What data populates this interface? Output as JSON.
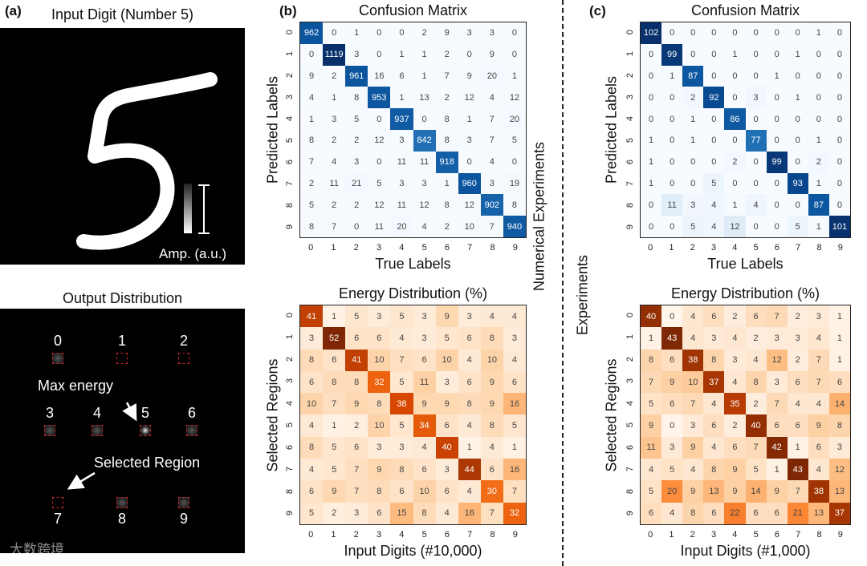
{
  "panel_a": {
    "label": "(a)",
    "input_title": "Input Digit (Number 5)",
    "amp_label": "Amp. (a.u.)",
    "output_title": "Output Distribution",
    "region_labels": [
      "0",
      "1",
      "2",
      "3",
      "4",
      "5",
      "6",
      "7",
      "8",
      "9"
    ],
    "max_energy_label": "Max energy",
    "selected_region_label": "Selected Region",
    "watermark": "大数跨境"
  },
  "panel_b": {
    "label": "(b)",
    "side_label": "Numerical Experiments"
  },
  "panel_c": {
    "label": "(c)",
    "side_label": "Experiments"
  },
  "chart_data": [
    {
      "type": "heatmap",
      "id": "b-confusion",
      "colormap": "blues",
      "title": "Confusion Matrix",
      "xlabel": "True Labels",
      "ylabel": "Predicted Labels",
      "xticks": [
        "0",
        "1",
        "2",
        "3",
        "4",
        "5",
        "6",
        "7",
        "8",
        "9"
      ],
      "yticks": [
        "0",
        "1",
        "2",
        "3",
        "4",
        "5",
        "6",
        "7",
        "8",
        "9"
      ],
      "values": [
        [
          962,
          0,
          1,
          0,
          0,
          2,
          9,
          3,
          3,
          0
        ],
        [
          0,
          1119,
          3,
          0,
          1,
          1,
          2,
          0,
          9,
          0
        ],
        [
          9,
          2,
          961,
          16,
          6,
          1,
          7,
          9,
          20,
          1
        ],
        [
          4,
          1,
          8,
          953,
          1,
          13,
          2,
          12,
          4,
          12
        ],
        [
          1,
          3,
          5,
          0,
          937,
          0,
          8,
          1,
          7,
          20
        ],
        [
          8,
          2,
          2,
          12,
          3,
          842,
          8,
          3,
          7,
          5
        ],
        [
          7,
          4,
          3,
          0,
          11,
          11,
          918,
          0,
          4,
          0
        ],
        [
          2,
          11,
          21,
          5,
          3,
          3,
          1,
          960,
          3,
          19
        ],
        [
          5,
          2,
          2,
          12,
          11,
          12,
          8,
          12,
          902,
          8
        ],
        [
          8,
          7,
          0,
          11,
          20,
          4,
          2,
          10,
          7,
          940
        ]
      ]
    },
    {
      "type": "heatmap",
      "id": "b-energy",
      "colormap": "oranges",
      "title": "Energy Distribution (%)",
      "xlabel": "Input Digits (#10,000)",
      "ylabel": "Selected Regions",
      "xticks": [
        "0",
        "1",
        "2",
        "3",
        "4",
        "5",
        "6",
        "7",
        "8",
        "9"
      ],
      "yticks": [
        "0",
        "1",
        "2",
        "3",
        "4",
        "5",
        "6",
        "7",
        "8",
        "9"
      ],
      "values": [
        [
          41,
          1,
          5,
          3,
          5,
          3,
          9,
          3,
          4,
          4
        ],
        [
          3,
          52,
          6,
          6,
          4,
          3,
          5,
          6,
          8,
          3
        ],
        [
          8,
          6,
          41,
          10,
          7,
          6,
          10,
          4,
          10,
          4
        ],
        [
          6,
          8,
          8,
          32,
          5,
          11,
          3,
          6,
          9,
          6
        ],
        [
          10,
          7,
          9,
          8,
          38,
          9,
          9,
          8,
          9,
          16
        ],
        [
          4,
          1,
          2,
          10,
          5,
          34,
          6,
          4,
          8,
          5
        ],
        [
          8,
          5,
          6,
          3,
          3,
          4,
          40,
          1,
          4,
          1
        ],
        [
          4,
          5,
          7,
          9,
          8,
          6,
          3,
          44,
          6,
          16
        ],
        [
          6,
          9,
          7,
          8,
          6,
          10,
          6,
          4,
          30,
          7
        ],
        [
          5,
          2,
          3,
          6,
          15,
          8,
          4,
          16,
          7,
          32
        ]
      ]
    },
    {
      "type": "heatmap",
      "id": "c-confusion",
      "colormap": "blues",
      "title": "Confusion Matrix",
      "xlabel": "True Labels",
      "ylabel": "Predicted Labels",
      "xticks": [
        "0",
        "1",
        "2",
        "3",
        "4",
        "5",
        "6",
        "7",
        "8",
        "9"
      ],
      "yticks": [
        "0",
        "1",
        "2",
        "3",
        "4",
        "5",
        "6",
        "7",
        "8",
        "9"
      ],
      "values": [
        [
          102,
          0,
          0,
          0,
          0,
          0,
          0,
          0,
          1,
          0
        ],
        [
          0,
          99,
          0,
          0,
          1,
          0,
          0,
          1,
          0,
          0
        ],
        [
          0,
          1,
          87,
          0,
          0,
          0,
          1,
          0,
          0,
          0
        ],
        [
          0,
          0,
          2,
          92,
          0,
          3,
          0,
          1,
          0,
          0
        ],
        [
          0,
          0,
          1,
          0,
          86,
          0,
          0,
          0,
          0,
          0
        ],
        [
          1,
          0,
          1,
          0,
          0,
          77,
          0,
          0,
          1,
          0
        ],
        [
          1,
          0,
          0,
          0,
          2,
          0,
          99,
          0,
          2,
          0
        ],
        [
          1,
          0,
          0,
          5,
          0,
          0,
          0,
          93,
          1,
          0
        ],
        [
          0,
          11,
          3,
          4,
          1,
          4,
          0,
          0,
          87,
          0
        ],
        [
          0,
          0,
          5,
          4,
          12,
          0,
          0,
          5,
          1,
          101
        ]
      ]
    },
    {
      "type": "heatmap",
      "id": "c-energy",
      "colormap": "oranges",
      "title": "Energy Distribution (%)",
      "xlabel": "Input Digits (#1,000)",
      "ylabel": "Selected Regions",
      "xticks": [
        "0",
        "1",
        "2",
        "3",
        "4",
        "5",
        "6",
        "7",
        "8",
        "9"
      ],
      "yticks": [
        "0",
        "1",
        "2",
        "3",
        "4",
        "5",
        "6",
        "7",
        "8",
        "9"
      ],
      "values": [
        [
          40,
          0,
          4,
          6,
          2,
          6,
          7,
          2,
          3,
          1
        ],
        [
          1,
          43,
          4,
          3,
          4,
          2,
          3,
          3,
          4,
          1
        ],
        [
          8,
          6,
          38,
          8,
          3,
          4,
          12,
          2,
          7,
          1
        ],
        [
          7,
          9,
          10,
          37,
          4,
          8,
          3,
          6,
          7,
          6
        ],
        [
          5,
          6,
          7,
          4,
          35,
          2,
          7,
          4,
          4,
          14
        ],
        [
          9,
          0,
          3,
          6,
          2,
          40,
          6,
          6,
          9,
          8
        ],
        [
          11,
          3,
          9,
          4,
          6,
          7,
          42,
          1,
          6,
          3
        ],
        [
          4,
          5,
          4,
          8,
          9,
          5,
          1,
          43,
          4,
          12
        ],
        [
          5,
          20,
          9,
          13,
          9,
          14,
          9,
          7,
          38,
          13
        ],
        [
          6,
          4,
          8,
          6,
          22,
          6,
          6,
          21,
          13,
          37
        ]
      ]
    }
  ]
}
